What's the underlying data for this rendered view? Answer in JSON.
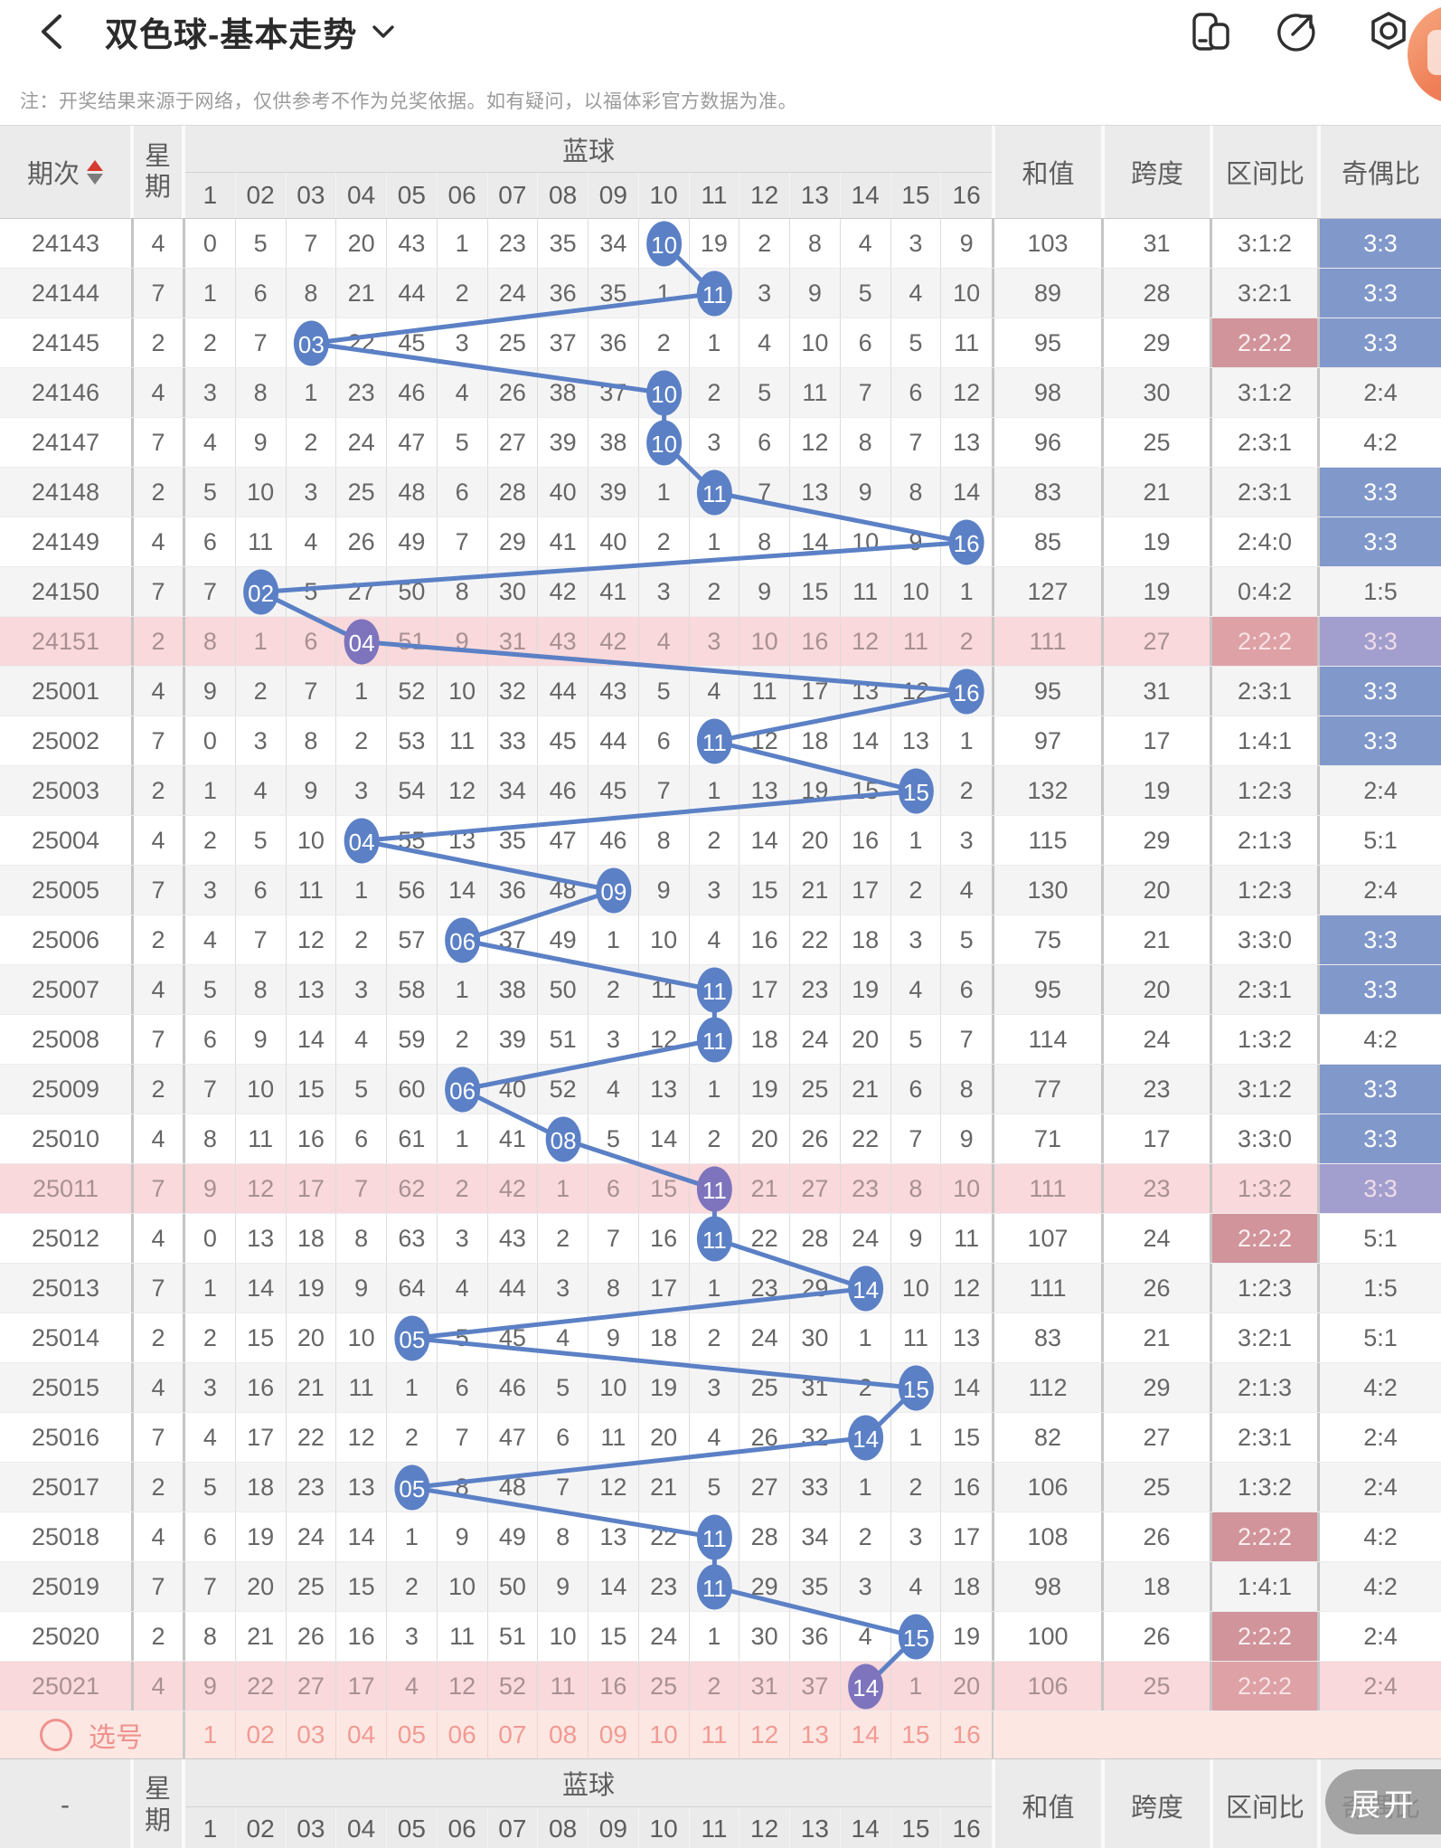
{
  "top_bar": {
    "title": "双色球-基本走势",
    "back_icon": "chevron-left",
    "dropdown_icon": "chevron-down",
    "icons": {
      "split": "split-window",
      "share": "share-arrow",
      "record": "record-hexagon",
      "avatar": "user-avatar"
    }
  },
  "notice": "注：开奖结果来源于网络，仅供参考不作为兑奖依据。如有疑问，以福体彩官方数据为准。",
  "colors": {
    "trend_blue": "#5b80c5",
    "trend_purple_on_highlight": "#7d74bd",
    "parity_blue_bg": "#8198cb",
    "zone_pink_bg": "#d0949a",
    "row_highlight_bg": "#f9d9db",
    "select_pink": "#ef928d"
  },
  "table": {
    "header": {
      "period": "期次",
      "week": "星期",
      "blue": "蓝球",
      "sum": "和值",
      "span": "跨度",
      "zone": "区间比",
      "parity": "奇偶比"
    },
    "ball_labels": [
      "1",
      "02",
      "03",
      "04",
      "05",
      "06",
      "07",
      "08",
      "09",
      "10",
      "11",
      "12",
      "13",
      "14",
      "15",
      "16"
    ],
    "rows": [
      {
        "period": "24143",
        "week": "4",
        "cells": [
          "0",
          "5",
          "7",
          "20",
          "43",
          "1",
          "23",
          "35",
          "34",
          "10",
          "19",
          "2",
          "8",
          "4",
          "3",
          "9"
        ],
        "drawn": 10,
        "sum": "103",
        "span": "31",
        "zone": "3:1:2",
        "zone_hl": false,
        "parity": "3:3",
        "parity_hl": true,
        "hl": false
      },
      {
        "period": "24144",
        "week": "7",
        "cells": [
          "1",
          "6",
          "8",
          "21",
          "44",
          "2",
          "24",
          "36",
          "35",
          "1",
          "11",
          "3",
          "9",
          "5",
          "4",
          "10"
        ],
        "drawn": 11,
        "sum": "89",
        "span": "28",
        "zone": "3:2:1",
        "zone_hl": false,
        "parity": "3:3",
        "parity_hl": true,
        "hl": false
      },
      {
        "period": "24145",
        "week": "2",
        "cells": [
          "2",
          "7",
          "03",
          "22",
          "45",
          "3",
          "25",
          "37",
          "36",
          "2",
          "1",
          "4",
          "10",
          "6",
          "5",
          "11"
        ],
        "drawn": 3,
        "sum": "95",
        "span": "29",
        "zone": "2:2:2",
        "zone_hl": true,
        "parity": "3:3",
        "parity_hl": true,
        "hl": false
      },
      {
        "period": "24146",
        "week": "4",
        "cells": [
          "3",
          "8",
          "1",
          "23",
          "46",
          "4",
          "26",
          "38",
          "37",
          "10",
          "2",
          "5",
          "11",
          "7",
          "6",
          "12"
        ],
        "drawn": 10,
        "sum": "98",
        "span": "30",
        "zone": "3:1:2",
        "zone_hl": false,
        "parity": "2:4",
        "parity_hl": false,
        "hl": false
      },
      {
        "period": "24147",
        "week": "7",
        "cells": [
          "4",
          "9",
          "2",
          "24",
          "47",
          "5",
          "27",
          "39",
          "38",
          "10",
          "3",
          "6",
          "12",
          "8",
          "7",
          "13"
        ],
        "drawn": 10,
        "sum": "96",
        "span": "25",
        "zone": "2:3:1",
        "zone_hl": false,
        "parity": "4:2",
        "parity_hl": false,
        "hl": false
      },
      {
        "period": "24148",
        "week": "2",
        "cells": [
          "5",
          "10",
          "3",
          "25",
          "48",
          "6",
          "28",
          "40",
          "39",
          "1",
          "11",
          "7",
          "13",
          "9",
          "8",
          "14"
        ],
        "drawn": 11,
        "sum": "83",
        "span": "21",
        "zone": "2:3:1",
        "zone_hl": false,
        "parity": "3:3",
        "parity_hl": true,
        "hl": false
      },
      {
        "period": "24149",
        "week": "4",
        "cells": [
          "6",
          "11",
          "4",
          "26",
          "49",
          "7",
          "29",
          "41",
          "40",
          "2",
          "1",
          "8",
          "14",
          "10",
          "9",
          "16"
        ],
        "drawn": 16,
        "sum": "85",
        "span": "19",
        "zone": "2:4:0",
        "zone_hl": false,
        "parity": "3:3",
        "parity_hl": true,
        "hl": false
      },
      {
        "period": "24150",
        "week": "7",
        "cells": [
          "7",
          "02",
          "5",
          "27",
          "50",
          "8",
          "30",
          "42",
          "41",
          "3",
          "2",
          "9",
          "15",
          "11",
          "10",
          "1"
        ],
        "drawn": 2,
        "sum": "127",
        "span": "19",
        "zone": "0:4:2",
        "zone_hl": false,
        "parity": "1:5",
        "parity_hl": false,
        "hl": false
      },
      {
        "period": "24151",
        "week": "2",
        "cells": [
          "8",
          "1",
          "6",
          "04",
          "51",
          "9",
          "31",
          "43",
          "42",
          "4",
          "3",
          "10",
          "16",
          "12",
          "11",
          "2"
        ],
        "drawn": 4,
        "sum": "111",
        "span": "27",
        "zone": "2:2:2",
        "zone_hl": true,
        "parity": "3:3",
        "parity_hl": true,
        "hl": true
      },
      {
        "period": "25001",
        "week": "4",
        "cells": [
          "9",
          "2",
          "7",
          "1",
          "52",
          "10",
          "32",
          "44",
          "43",
          "5",
          "4",
          "11",
          "17",
          "13",
          "12",
          "16"
        ],
        "drawn": 16,
        "sum": "95",
        "span": "31",
        "zone": "2:3:1",
        "zone_hl": false,
        "parity": "3:3",
        "parity_hl": true,
        "hl": false
      },
      {
        "period": "25002",
        "week": "7",
        "cells": [
          "0",
          "3",
          "8",
          "2",
          "53",
          "11",
          "33",
          "45",
          "44",
          "6",
          "11",
          "12",
          "18",
          "14",
          "13",
          "1"
        ],
        "drawn": 11,
        "sum": "97",
        "span": "17",
        "zone": "1:4:1",
        "zone_hl": false,
        "parity": "3:3",
        "parity_hl": true,
        "hl": false
      },
      {
        "period": "25003",
        "week": "2",
        "cells": [
          "1",
          "4",
          "9",
          "3",
          "54",
          "12",
          "34",
          "46",
          "45",
          "7",
          "1",
          "13",
          "19",
          "15",
          "15",
          "2"
        ],
        "drawn": 15,
        "sum": "132",
        "span": "19",
        "zone": "1:2:3",
        "zone_hl": false,
        "parity": "2:4",
        "parity_hl": false,
        "hl": false
      },
      {
        "period": "25004",
        "week": "4",
        "cells": [
          "2",
          "5",
          "10",
          "04",
          "55",
          "13",
          "35",
          "47",
          "46",
          "8",
          "2",
          "14",
          "20",
          "16",
          "1",
          "3"
        ],
        "drawn": 4,
        "sum": "115",
        "span": "29",
        "zone": "2:1:3",
        "zone_hl": false,
        "parity": "5:1",
        "parity_hl": false,
        "hl": false
      },
      {
        "period": "25005",
        "week": "7",
        "cells": [
          "3",
          "6",
          "11",
          "1",
          "56",
          "14",
          "36",
          "48",
          "09",
          "9",
          "3",
          "15",
          "21",
          "17",
          "2",
          "4"
        ],
        "drawn": 9,
        "sum": "130",
        "span": "20",
        "zone": "1:2:3",
        "zone_hl": false,
        "parity": "2:4",
        "parity_hl": false,
        "hl": false
      },
      {
        "period": "25006",
        "week": "2",
        "cells": [
          "4",
          "7",
          "12",
          "2",
          "57",
          "06",
          "37",
          "49",
          "1",
          "10",
          "4",
          "16",
          "22",
          "18",
          "3",
          "5"
        ],
        "drawn": 6,
        "sum": "75",
        "span": "21",
        "zone": "3:3:0",
        "zone_hl": false,
        "parity": "3:3",
        "parity_hl": true,
        "hl": false
      },
      {
        "period": "25007",
        "week": "4",
        "cells": [
          "5",
          "8",
          "13",
          "3",
          "58",
          "1",
          "38",
          "50",
          "2",
          "11",
          "11",
          "17",
          "23",
          "19",
          "4",
          "6"
        ],
        "drawn": 11,
        "sum": "95",
        "span": "20",
        "zone": "2:3:1",
        "zone_hl": false,
        "parity": "3:3",
        "parity_hl": true,
        "hl": false
      },
      {
        "period": "25008",
        "week": "7",
        "cells": [
          "6",
          "9",
          "14",
          "4",
          "59",
          "2",
          "39",
          "51",
          "3",
          "12",
          "11",
          "18",
          "24",
          "20",
          "5",
          "7"
        ],
        "drawn": 11,
        "sum": "114",
        "span": "24",
        "zone": "1:3:2",
        "zone_hl": false,
        "parity": "4:2",
        "parity_hl": false,
        "hl": false
      },
      {
        "period": "25009",
        "week": "2",
        "cells": [
          "7",
          "10",
          "15",
          "5",
          "60",
          "06",
          "40",
          "52",
          "4",
          "13",
          "1",
          "19",
          "25",
          "21",
          "6",
          "8"
        ],
        "drawn": 6,
        "sum": "77",
        "span": "23",
        "zone": "3:1:2",
        "zone_hl": false,
        "parity": "3:3",
        "parity_hl": true,
        "hl": false
      },
      {
        "period": "25010",
        "week": "4",
        "cells": [
          "8",
          "11",
          "16",
          "6",
          "61",
          "1",
          "41",
          "08",
          "5",
          "14",
          "2",
          "20",
          "26",
          "22",
          "7",
          "9"
        ],
        "drawn": 8,
        "sum": "71",
        "span": "17",
        "zone": "3:3:0",
        "zone_hl": false,
        "parity": "3:3",
        "parity_hl": true,
        "hl": false
      },
      {
        "period": "25011",
        "week": "7",
        "cells": [
          "9",
          "12",
          "17",
          "7",
          "62",
          "2",
          "42",
          "1",
          "6",
          "15",
          "11",
          "21",
          "27",
          "23",
          "8",
          "10"
        ],
        "drawn": 11,
        "sum": "111",
        "span": "23",
        "zone": "1:3:2",
        "zone_hl": false,
        "parity": "3:3",
        "parity_hl": true,
        "hl": true
      },
      {
        "period": "25012",
        "week": "4",
        "cells": [
          "0",
          "13",
          "18",
          "8",
          "63",
          "3",
          "43",
          "2",
          "7",
          "16",
          "11",
          "22",
          "28",
          "24",
          "9",
          "11"
        ],
        "drawn": 11,
        "sum": "107",
        "span": "24",
        "zone": "2:2:2",
        "zone_hl": true,
        "parity": "5:1",
        "parity_hl": false,
        "hl": false
      },
      {
        "period": "25013",
        "week": "7",
        "cells": [
          "1",
          "14",
          "19",
          "9",
          "64",
          "4",
          "44",
          "3",
          "8",
          "17",
          "1",
          "23",
          "29",
          "14",
          "10",
          "12"
        ],
        "drawn": 14,
        "sum": "111",
        "span": "26",
        "zone": "1:2:3",
        "zone_hl": false,
        "parity": "1:5",
        "parity_hl": false,
        "hl": false
      },
      {
        "period": "25014",
        "week": "2",
        "cells": [
          "2",
          "15",
          "20",
          "10",
          "05",
          "5",
          "45",
          "4",
          "9",
          "18",
          "2",
          "24",
          "30",
          "1",
          "11",
          "13"
        ],
        "drawn": 5,
        "sum": "83",
        "span": "21",
        "zone": "3:2:1",
        "zone_hl": false,
        "parity": "5:1",
        "parity_hl": false,
        "hl": false
      },
      {
        "period": "25015",
        "week": "4",
        "cells": [
          "3",
          "16",
          "21",
          "11",
          "1",
          "6",
          "46",
          "5",
          "10",
          "19",
          "3",
          "25",
          "31",
          "2",
          "15",
          "14"
        ],
        "drawn": 15,
        "sum": "112",
        "span": "29",
        "zone": "2:1:3",
        "zone_hl": false,
        "parity": "4:2",
        "parity_hl": false,
        "hl": false
      },
      {
        "period": "25016",
        "week": "7",
        "cells": [
          "4",
          "17",
          "22",
          "12",
          "2",
          "7",
          "47",
          "6",
          "11",
          "20",
          "4",
          "26",
          "32",
          "14",
          "1",
          "15"
        ],
        "drawn": 14,
        "sum": "82",
        "span": "27",
        "zone": "2:3:1",
        "zone_hl": false,
        "parity": "2:4",
        "parity_hl": false,
        "hl": false
      },
      {
        "period": "25017",
        "week": "2",
        "cells": [
          "5",
          "18",
          "23",
          "13",
          "05",
          "8",
          "48",
          "7",
          "12",
          "21",
          "5",
          "27",
          "33",
          "1",
          "2",
          "16"
        ],
        "drawn": 5,
        "sum": "106",
        "span": "25",
        "zone": "1:3:2",
        "zone_hl": false,
        "parity": "2:4",
        "parity_hl": false,
        "hl": false
      },
      {
        "period": "25018",
        "week": "4",
        "cells": [
          "6",
          "19",
          "24",
          "14",
          "1",
          "9",
          "49",
          "8",
          "13",
          "22",
          "11",
          "28",
          "34",
          "2",
          "3",
          "17"
        ],
        "drawn": 11,
        "sum": "108",
        "span": "26",
        "zone": "2:2:2",
        "zone_hl": true,
        "parity": "4:2",
        "parity_hl": false,
        "hl": false
      },
      {
        "period": "25019",
        "week": "7",
        "cells": [
          "7",
          "20",
          "25",
          "15",
          "2",
          "10",
          "50",
          "9",
          "14",
          "23",
          "11",
          "29",
          "35",
          "3",
          "4",
          "18"
        ],
        "drawn": 11,
        "sum": "98",
        "span": "18",
        "zone": "1:4:1",
        "zone_hl": false,
        "parity": "4:2",
        "parity_hl": false,
        "hl": false
      },
      {
        "period": "25020",
        "week": "2",
        "cells": [
          "8",
          "21",
          "26",
          "16",
          "3",
          "11",
          "51",
          "10",
          "15",
          "24",
          "1",
          "30",
          "36",
          "4",
          "15",
          "19"
        ],
        "drawn": 15,
        "sum": "100",
        "span": "26",
        "zone": "2:2:2",
        "zone_hl": true,
        "parity": "2:4",
        "parity_hl": false,
        "hl": false
      },
      {
        "period": "25021",
        "week": "4",
        "cells": [
          "9",
          "22",
          "27",
          "17",
          "4",
          "12",
          "52",
          "11",
          "16",
          "25",
          "2",
          "31",
          "37",
          "14",
          "1",
          "20"
        ],
        "drawn": 14,
        "sum": "106",
        "span": "25",
        "zone": "2:2:2",
        "zone_hl": true,
        "parity": "2:4",
        "parity_hl": false,
        "hl": true
      }
    ]
  },
  "select_row": {
    "label": "选号"
  },
  "footer": {
    "period": "-",
    "week": "星期",
    "blue": "蓝球",
    "sum": "和值",
    "span": "跨度",
    "zone": "区间比",
    "parity": "奇偶比"
  },
  "expand_button": "展开"
}
